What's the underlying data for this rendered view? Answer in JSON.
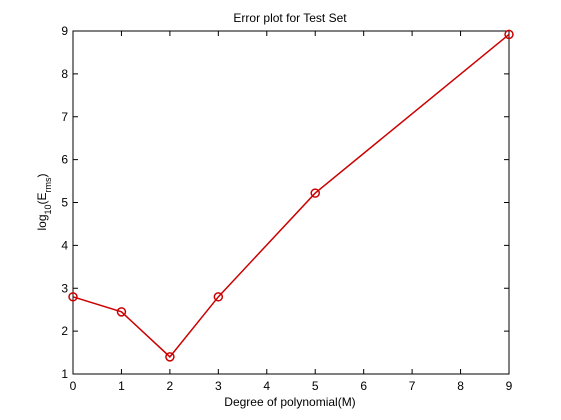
{
  "chart_data": {
    "type": "line",
    "title": "Error plot for Test Set",
    "xlabel": "Degree of polynomial(M)",
    "ylabel": {
      "base": "log",
      "sub1": "10",
      "mid": "(E",
      "sub2": "rms",
      "end": ")"
    },
    "xlim": [
      0,
      9
    ],
    "ylim": [
      1,
      9
    ],
    "xticks": [
      0,
      1,
      2,
      3,
      4,
      5,
      6,
      7,
      8,
      9
    ],
    "yticks": [
      1,
      2,
      3,
      4,
      5,
      6,
      7,
      8,
      9
    ],
    "grid": false,
    "series": [
      {
        "x": [
          0,
          1,
          2,
          3,
          5,
          9
        ],
        "y": [
          2.8,
          2.45,
          1.4,
          2.8,
          5.22,
          8.92
        ],
        "color": "#cc0000",
        "marker": "circle"
      }
    ]
  }
}
